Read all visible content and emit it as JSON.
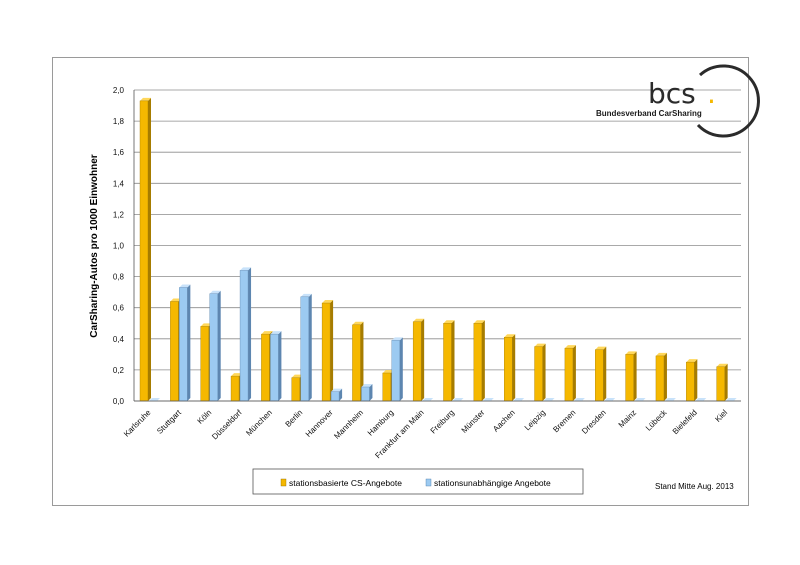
{
  "chart_data": {
    "type": "bar",
    "ylabel": "CarSharing-Autos pro 1000 Einwohner",
    "xlabel": "",
    "ylim": [
      0,
      2.0
    ],
    "yticks": [
      "0,0",
      "0,2",
      "0,4",
      "0,6",
      "0,8",
      "1,0",
      "1,2",
      "1,4",
      "1,6",
      "1,8",
      "2,0"
    ],
    "categories": [
      "Karlsruhe",
      "Stuttgart",
      "Köln",
      "Düsseldorf",
      "München",
      "Berlin",
      "Hannover",
      "Mannheim",
      "Hamburg",
      "Frankfurt am Main",
      "Freiburg",
      "Münster",
      "Aachen",
      "Leipzig",
      "Bremen",
      "Dresden",
      "Mainz",
      "Lübeck",
      "Bielefeld",
      "Kiel"
    ],
    "series": [
      {
        "name": "stationsbasierte CS-Angebote",
        "color": "#f5b800",
        "values": [
          1.93,
          0.64,
          0.48,
          0.16,
          0.43,
          0.15,
          0.63,
          0.49,
          0.18,
          0.51,
          0.5,
          0.5,
          0.41,
          0.35,
          0.34,
          0.33,
          0.3,
          0.29,
          0.25,
          0.22
        ]
      },
      {
        "name": "stationsunabhängige Angebote",
        "color": "#9ccaf1",
        "values": [
          0,
          0.73,
          0.69,
          0.84,
          0.43,
          0.67,
          0.06,
          0.09,
          0.39,
          0,
          0,
          0,
          0,
          0,
          0,
          0,
          0,
          0,
          0,
          0
        ]
      }
    ],
    "grid": true,
    "legend_position": "bottom-center"
  },
  "logo": {
    "text": "bcs",
    "dot": ".",
    "subtitle": "Bundesverband CarSharing",
    "dot_color": "#f5b800"
  },
  "note": "Stand Mitte Aug. 2013"
}
